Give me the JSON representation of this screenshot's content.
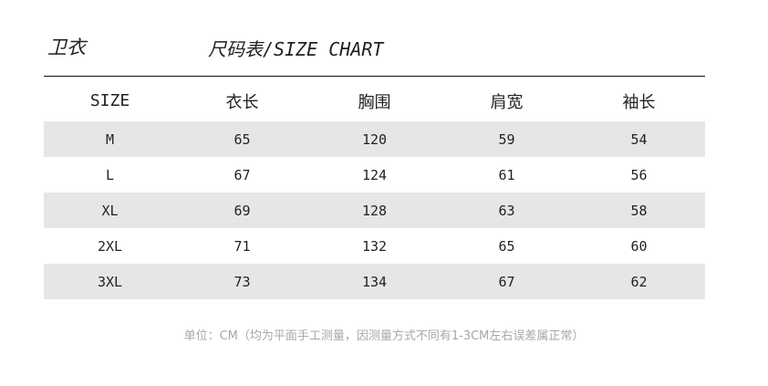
{
  "product": "卫衣",
  "title": "尺码表/SIZE CHART",
  "table": {
    "headers": [
      "SIZE",
      "衣长",
      "胸围",
      "肩宽",
      "袖长"
    ],
    "rows": [
      [
        "M",
        "65",
        "120",
        "59",
        "54"
      ],
      [
        "L",
        "67",
        "124",
        "61",
        "56"
      ],
      [
        "XL",
        "69",
        "128",
        "63",
        "58"
      ],
      [
        "2XL",
        "71",
        "132",
        "65",
        "60"
      ],
      [
        "3XL",
        "73",
        "134",
        "67",
        "62"
      ]
    ]
  },
  "note": "单位：CM（均为平面手工测量，因测量方式不同有1-3CM左右误差属正常）"
}
